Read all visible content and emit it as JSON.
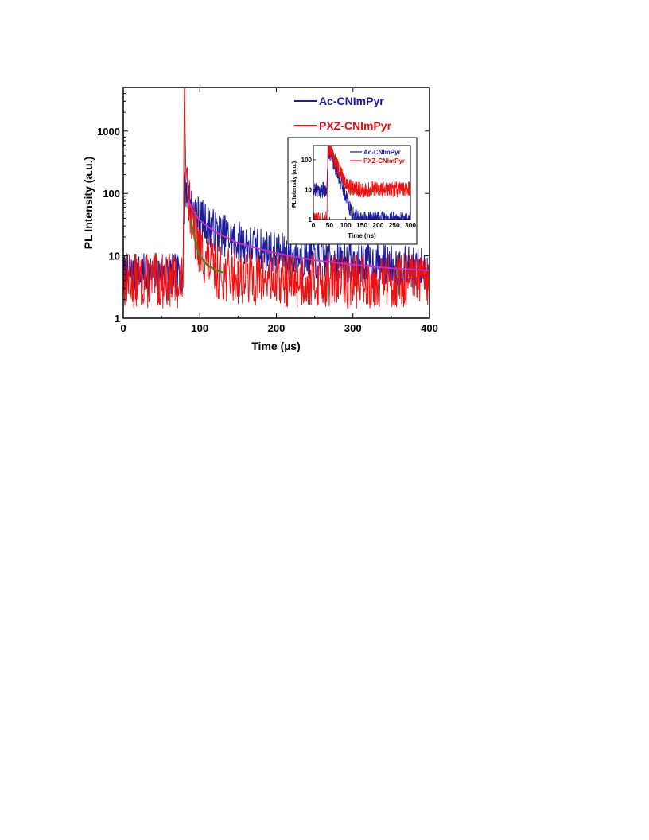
{
  "chart_data": [
    {
      "type": "line",
      "role": "main",
      "xlabel": "Time (µs)",
      "ylabel": "PL Intensity (a.u.)",
      "xlim": [
        0,
        400
      ],
      "ylim": [
        1,
        5000
      ],
      "yscale": "log",
      "xticks": [
        "0",
        "100",
        "200",
        "300",
        "400"
      ],
      "yticks": [
        "1",
        "10",
        "100",
        "1000"
      ],
      "legend_position": "top-right",
      "colors": {
        "ac": "#1a1a9e",
        "pxz": "#ee1111",
        "ac_fit": "#cc2fc4",
        "pxz_fit": "#5a7a1c"
      },
      "series": [
        {
          "name": "Ac-CNImPyr",
          "x": [
            0,
            60,
            78,
            80,
            82,
            85,
            90,
            100,
            120,
            150,
            200,
            250,
            300,
            350,
            400
          ],
          "y": [
            5,
            5,
            5,
            250,
            120,
            90,
            60,
            40,
            25,
            17,
            11,
            9,
            8,
            7,
            6
          ]
        },
        {
          "name": "PXZ-CNImPyr",
          "x": [
            0,
            60,
            78,
            80,
            82,
            85,
            90,
            100,
            110,
            120,
            130,
            200,
            300,
            400
          ],
          "y": [
            4,
            4,
            4,
            4800,
            400,
            100,
            30,
            12,
            8,
            6,
            5,
            4,
            4,
            4
          ]
        }
      ],
      "fits": [
        {
          "x": [
            85,
            90,
            100,
            120,
            150,
            200,
            250,
            300,
            350,
            400
          ],
          "y": [
            80,
            55,
            37,
            24,
            16,
            11,
            8.5,
            7.2,
            6.3,
            5.8
          ]
        },
        {
          "x": [
            88,
            92,
            96,
            100,
            110,
            120,
            130
          ],
          "y": [
            38,
            22,
            14,
            10,
            7,
            6,
            5.4
          ]
        }
      ]
    },
    {
      "type": "line",
      "role": "inset",
      "xlabel": "Time (ns)",
      "ylabel": "PL Intensity (a.u.)",
      "xlim": [
        0,
        300
      ],
      "ylim": [
        1,
        300
      ],
      "yscale": "log",
      "xticks": [
        "0",
        "50",
        "100",
        "150",
        "200",
        "250",
        "300"
      ],
      "yticks": [
        "1",
        "10",
        "100"
      ],
      "legend_position": "top-right",
      "series": [
        {
          "name": "Ac-CNImPyr",
          "x": [
            0,
            38,
            42,
            45,
            50,
            60,
            70,
            80,
            90,
            100,
            110,
            120,
            140,
            180,
            300
          ],
          "y": [
            10,
            10,
            10,
            200,
            180,
            100,
            50,
            25,
            12,
            6,
            3,
            1.5,
            1,
            1,
            1
          ]
        },
        {
          "name": "PXZ-CNImPyr",
          "x": [
            0,
            38,
            42,
            45,
            50,
            60,
            70,
            80,
            90,
            100,
            110,
            120,
            140,
            180,
            300
          ],
          "y": [
            1,
            1,
            1,
            250,
            220,
            140,
            80,
            45,
            28,
            18,
            13,
            11,
            10,
            10,
            10
          ]
        }
      ]
    }
  ]
}
